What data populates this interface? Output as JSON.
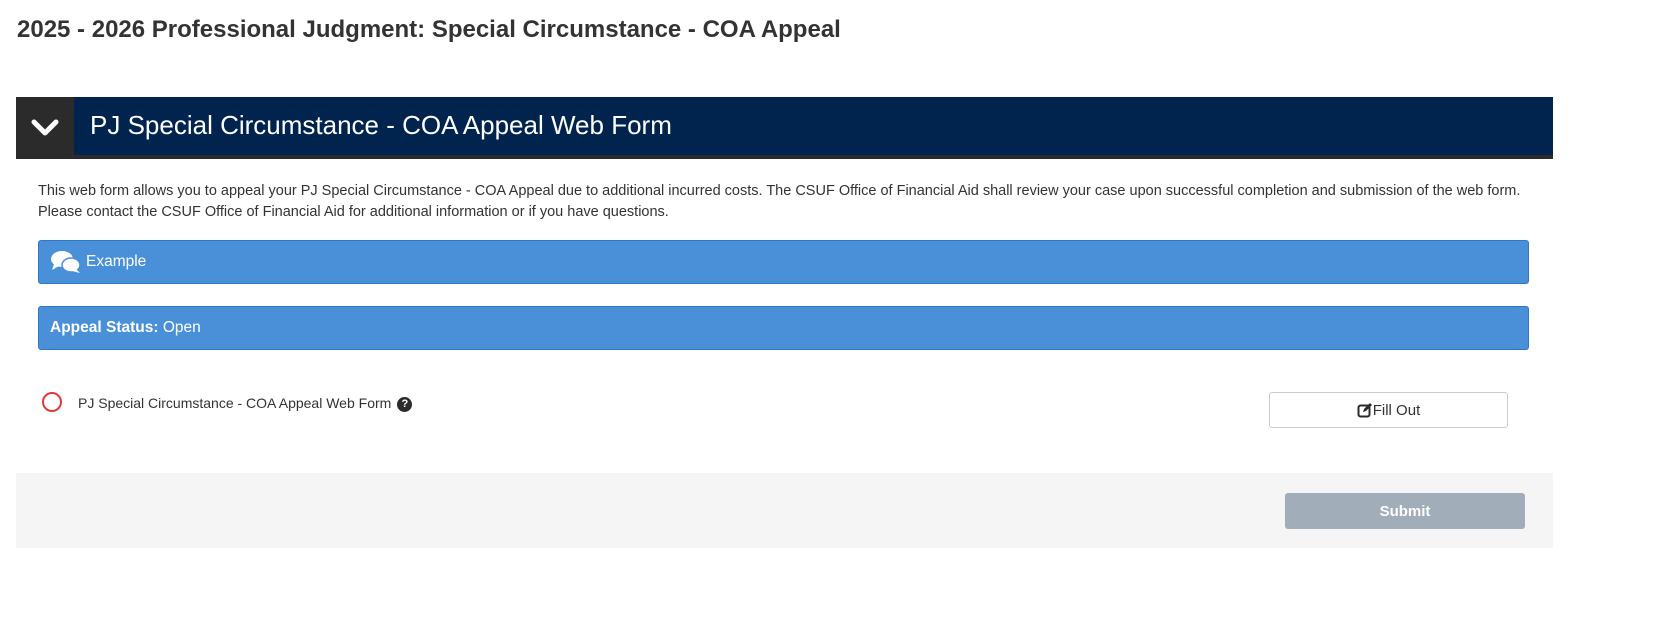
{
  "page_title": "2025 - 2026 Professional Judgment: Special Circumstance - COA Appeal",
  "panel": {
    "title": "PJ Special Circumstance - COA Appeal Web Form",
    "toggle_icon": "chevron-down-icon"
  },
  "description": "This web form allows you to appeal your PJ Special Circumstance - COA Appeal due to additional incurred costs. The CSUF Office of Financial Aid shall review your case upon successful completion and submission of the web form. Please contact the CSUF Office of Financial Aid for additional information or if you have questions.",
  "example": {
    "label": "Example",
    "icon": "comments-icon"
  },
  "status": {
    "label": "Appeal Status:",
    "value": "Open"
  },
  "item": {
    "label": "PJ Special Circumstance - COA Appeal Web Form",
    "help": "?",
    "button": "Fill Out",
    "status_color": "#e03a3a"
  },
  "submit": "Submit",
  "colors": {
    "header": "#00244e",
    "bar": "#4a90d9",
    "submit_disabled": "#a1adb9"
  }
}
